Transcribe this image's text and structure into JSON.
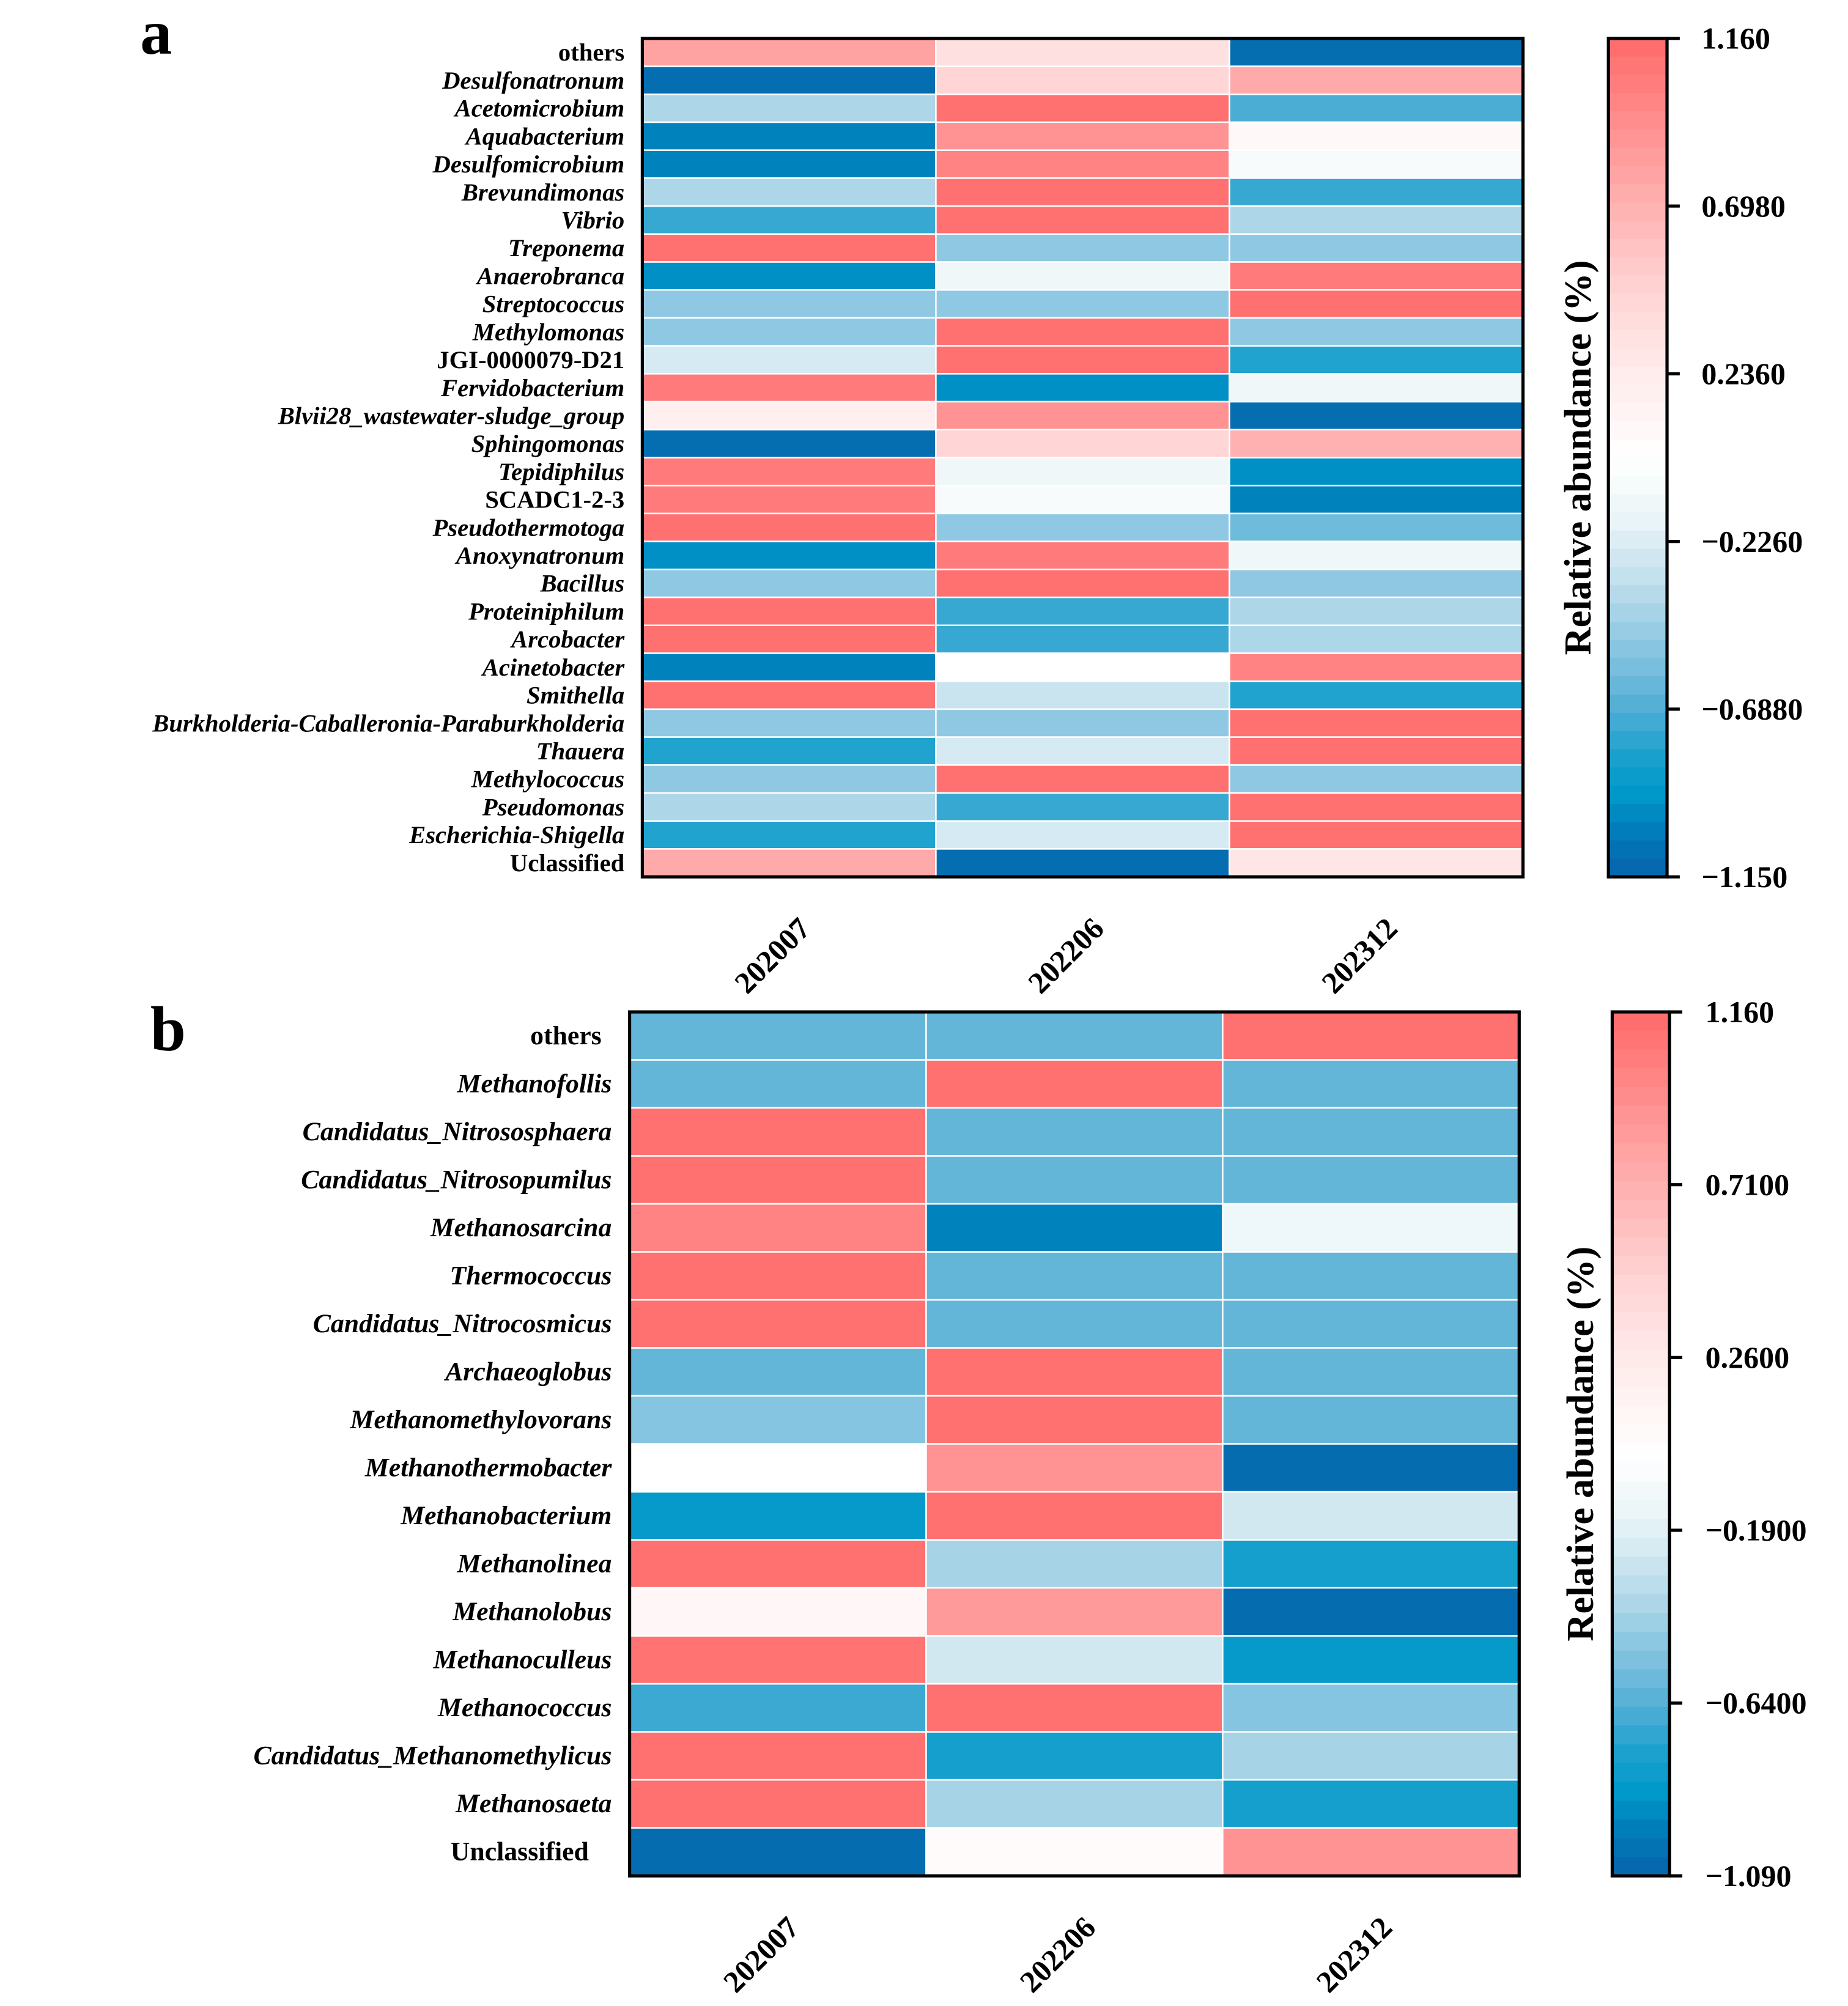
{
  "chart_data": [
    {
      "type": "heatmap",
      "panel_label": "a",
      "columns": [
        "202007",
        "202206",
        "202312"
      ],
      "colorbar": {
        "title": "Relative abundance (%)",
        "min": -1.15,
        "max": 1.16,
        "ticks": [
          "1.160",
          "0.6980",
          "0.2360",
          "−0.2260",
          "−0.6880",
          "−1.150"
        ],
        "tick_values": [
          1.16,
          0.698,
          0.236,
          -0.226,
          -0.688,
          -1.15
        ]
      },
      "rows": [
        {
          "name": "others",
          "italic": false,
          "values": [
            0.8,
            0.35,
            -1.1
          ]
        },
        {
          "name": "Desulfonatronum",
          "italic": true,
          "values": [
            -1.1,
            0.45,
            0.75
          ]
        },
        {
          "name": "Acetomicrobium",
          "italic": true,
          "values": [
            -0.4,
            1.12,
            -0.7
          ]
        },
        {
          "name": "Aquabacterium",
          "italic": true,
          "values": [
            -1.0,
            0.9,
            0.08
          ]
        },
        {
          "name": "Desulfomicrobium",
          "italic": true,
          "values": [
            -1.0,
            1.0,
            -0.06
          ]
        },
        {
          "name": "Brevundimonas",
          "italic": true,
          "values": [
            -0.4,
            1.12,
            -0.75
          ]
        },
        {
          "name": "Vibrio",
          "italic": true,
          "values": [
            -0.75,
            1.12,
            -0.4
          ]
        },
        {
          "name": "Treponema",
          "italic": true,
          "values": [
            1.12,
            -0.5,
            -0.5
          ]
        },
        {
          "name": "Anaerobranca",
          "italic": true,
          "values": [
            -0.95,
            -0.12,
            1.05
          ]
        },
        {
          "name": "Streptococcus",
          "italic": true,
          "values": [
            -0.5,
            -0.5,
            1.12
          ]
        },
        {
          "name": "Methylomonas",
          "italic": true,
          "values": [
            -0.5,
            1.12,
            -0.5
          ]
        },
        {
          "name": "JGI-0000079-D21",
          "italic": false,
          "values": [
            -0.25,
            1.12,
            -0.8
          ]
        },
        {
          "name": "Fervidobacterium",
          "italic": true,
          "values": [
            1.05,
            -0.95,
            -0.12
          ]
        },
        {
          "name": "Blvii28_wastewater-sludge_group",
          "italic": true,
          "values": [
            0.2,
            0.9,
            -1.1
          ]
        },
        {
          "name": "Sphingomonas",
          "italic": true,
          "values": [
            -1.1,
            0.45,
            0.7
          ]
        },
        {
          "name": "Tepidiphilus",
          "italic": true,
          "values": [
            1.05,
            -0.12,
            -0.95
          ]
        },
        {
          "name": "SCADC1-2-3",
          "italic": false,
          "values": [
            1.05,
            -0.06,
            -1.0
          ]
        },
        {
          "name": "Pseudothermotoga",
          "italic": true,
          "values": [
            1.12,
            -0.5,
            -0.6
          ]
        },
        {
          "name": "Anoxynatronum",
          "italic": true,
          "values": [
            -0.95,
            1.05,
            -0.12
          ]
        },
        {
          "name": "Bacillus",
          "italic": true,
          "values": [
            -0.5,
            1.12,
            -0.5
          ]
        },
        {
          "name": "Proteiniphilum",
          "italic": true,
          "values": [
            1.12,
            -0.75,
            -0.4
          ]
        },
        {
          "name": "Arcobacter",
          "italic": true,
          "values": [
            1.12,
            -0.75,
            -0.4
          ]
        },
        {
          "name": "Acinetobacter",
          "italic": true,
          "values": [
            -1.0,
            0.0,
            1.0
          ]
        },
        {
          "name": "Smithella",
          "italic": true,
          "values": [
            1.12,
            -0.3,
            -0.8
          ]
        },
        {
          "name": "Burkholderia-Caballeronia-Paraburkholderia",
          "italic": true,
          "values": [
            -0.5,
            -0.5,
            1.12
          ]
        },
        {
          "name": "Thauera",
          "italic": true,
          "values": [
            -0.8,
            -0.25,
            1.12
          ]
        },
        {
          "name": "Methylococcus",
          "italic": true,
          "values": [
            -0.5,
            1.12,
            -0.5
          ]
        },
        {
          "name": "Pseudomonas",
          "italic": true,
          "values": [
            -0.4,
            -0.75,
            1.12
          ]
        },
        {
          "name": "Escherichia-Shigella",
          "italic": true,
          "values": [
            -0.8,
            -0.25,
            1.12
          ]
        },
        {
          "name": "Uclassified",
          "italic": false,
          "values": [
            0.75,
            -1.1,
            0.3
          ]
        }
      ]
    },
    {
      "type": "heatmap",
      "panel_label": "b",
      "columns": [
        "202007",
        "202206",
        "202312"
      ],
      "colorbar": {
        "title": "Relative abundance (%)",
        "min": -1.09,
        "max": 1.16,
        "ticks": [
          "1.160",
          "0.7100",
          "0.2600",
          "−0.1900",
          "−0.6400",
          "−1.090"
        ],
        "tick_values": [
          1.16,
          0.71,
          0.26,
          -0.19,
          -0.64,
          -1.09
        ]
      },
      "rows": [
        {
          "name": "others",
          "italic": false,
          "values": [
            -0.6,
            -0.6,
            1.12
          ]
        },
        {
          "name": "Methanofollis",
          "italic": true,
          "values": [
            -0.6,
            1.12,
            -0.6
          ]
        },
        {
          "name": "Candidatus_Nitrososphaera",
          "italic": true,
          "values": [
            1.12,
            -0.6,
            -0.6
          ]
        },
        {
          "name": "Candidatus_Nitrosopumilus",
          "italic": true,
          "values": [
            1.12,
            -0.6,
            -0.6
          ]
        },
        {
          "name": "Methanosarcina",
          "italic": true,
          "values": [
            1.0,
            -0.95,
            -0.12
          ]
        },
        {
          "name": "Thermococcus",
          "italic": true,
          "values": [
            1.12,
            -0.6,
            -0.6
          ]
        },
        {
          "name": "Candidatus_Nitrocosmicus",
          "italic": true,
          "values": [
            1.12,
            -0.6,
            -0.6
          ]
        },
        {
          "name": "Archaeoglobus",
          "italic": true,
          "values": [
            -0.6,
            1.12,
            -0.6
          ]
        },
        {
          "name": "Methanomethylovorans",
          "italic": true,
          "values": [
            -0.5,
            1.12,
            -0.6
          ]
        },
        {
          "name": "Methanothermobacter",
          "italic": true,
          "values": [
            0.0,
            0.9,
            -1.05
          ]
        },
        {
          "name": "Methanobacterium",
          "italic": true,
          "values": [
            -0.85,
            1.12,
            -0.25
          ]
        },
        {
          "name": "Methanolinea",
          "italic": true,
          "values": [
            1.12,
            -0.4,
            -0.8
          ]
        },
        {
          "name": "Methanolobus",
          "italic": true,
          "values": [
            0.1,
            0.85,
            -1.05
          ]
        },
        {
          "name": "Methanoculleus",
          "italic": true,
          "values": [
            1.1,
            -0.25,
            -0.85
          ]
        },
        {
          "name": "Methanococcus",
          "italic": true,
          "values": [
            -0.7,
            1.12,
            -0.5
          ]
        },
        {
          "name": "Candidatus_Methanomethylicus",
          "italic": true,
          "values": [
            1.12,
            -0.8,
            -0.4
          ]
        },
        {
          "name": "Methanosaeta",
          "italic": true,
          "values": [
            1.12,
            -0.4,
            -0.8
          ]
        },
        {
          "name": "Unclassified",
          "italic": false,
          "values": [
            -1.05,
            0.05,
            0.9
          ]
        }
      ]
    }
  ]
}
